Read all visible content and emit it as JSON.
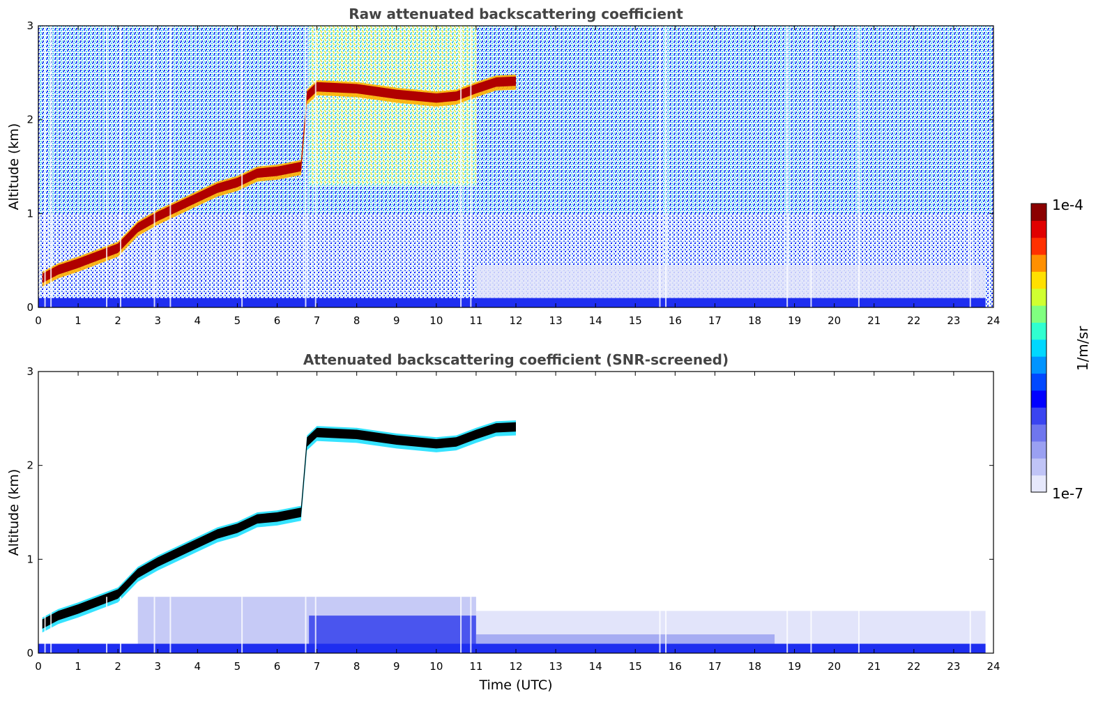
{
  "chart_data": [
    {
      "type": "heatmap",
      "title": "Raw attenuated backscattering coefficient",
      "xlabel": "",
      "ylabel": "Altitude (km)",
      "xlim": [
        0,
        24
      ],
      "ylim": [
        0,
        3
      ],
      "x_ticks": [
        "0",
        "1",
        "2",
        "3",
        "4",
        "5",
        "6",
        "7",
        "8",
        "9",
        "10",
        "11",
        "12",
        "13",
        "14",
        "15",
        "16",
        "17",
        "18",
        "19",
        "20",
        "21",
        "22",
        "23",
        "24"
      ],
      "y_ticks": [
        "0",
        "1",
        "2",
        "3"
      ],
      "layer_top_km": {
        "time_utc": [
          0.1,
          0.5,
          1.0,
          1.5,
          2.0,
          2.5,
          3.0,
          3.5,
          4.0,
          4.5,
          5.0,
          5.5,
          6.0,
          6.6,
          6.75,
          7.0,
          8.0,
          9.0,
          10.0,
          10.5,
          11.0,
          11.5,
          12.0
        ],
        "altitude_km": [
          0.36,
          0.45,
          0.52,
          0.6,
          0.68,
          0.9,
          1.02,
          1.12,
          1.22,
          1.32,
          1.38,
          1.48,
          1.5,
          1.55,
          2.3,
          2.4,
          2.38,
          2.32,
          2.28,
          2.3,
          2.38,
          2.45,
          2.46
        ]
      },
      "noise_background": "speckled",
      "grid": false
    },
    {
      "type": "heatmap",
      "title": "Attenuated backscattering coefficient (SNR-screened)",
      "xlabel": "Time (UTC)",
      "ylabel": "Altitude (km)",
      "xlim": [
        0,
        24
      ],
      "ylim": [
        0,
        3
      ],
      "x_ticks": [
        "0",
        "1",
        "2",
        "3",
        "4",
        "5",
        "6",
        "7",
        "8",
        "9",
        "10",
        "11",
        "12",
        "13",
        "14",
        "15",
        "16",
        "17",
        "18",
        "19",
        "20",
        "21",
        "22",
        "23",
        "24"
      ],
      "y_ticks": [
        "0",
        "1",
        "2",
        "3"
      ],
      "layer_top_km": {
        "time_utc": [
          0.1,
          0.5,
          1.0,
          1.5,
          2.0,
          2.5,
          3.0,
          3.5,
          4.0,
          4.5,
          5.0,
          5.5,
          6.0,
          6.6,
          6.75,
          7.0,
          8.0,
          9.0,
          10.0,
          10.5,
          11.0,
          11.5,
          12.0
        ],
        "altitude_km": [
          0.36,
          0.45,
          0.52,
          0.6,
          0.68,
          0.9,
          1.02,
          1.12,
          1.22,
          1.32,
          1.38,
          1.48,
          1.5,
          1.55,
          2.3,
          2.4,
          2.38,
          2.32,
          2.28,
          2.3,
          2.38,
          2.45,
          2.46
        ]
      },
      "noise_background": "screened",
      "grid": false
    }
  ],
  "colorbar": {
    "label": "1/m/sr",
    "max_label": "1e-4",
    "min_label": "1e-7",
    "colormap": [
      "#e6e8fb",
      "#c0c4f6",
      "#9aa0f2",
      "#6f76ee",
      "#3a44f0",
      "#0000ff",
      "#0048ff",
      "#0094ff",
      "#00d8ff",
      "#30ffd0",
      "#80ff80",
      "#d0ff30",
      "#ffe000",
      "#ff9000",
      "#ff3000",
      "#e00000",
      "#8b0000"
    ]
  }
}
